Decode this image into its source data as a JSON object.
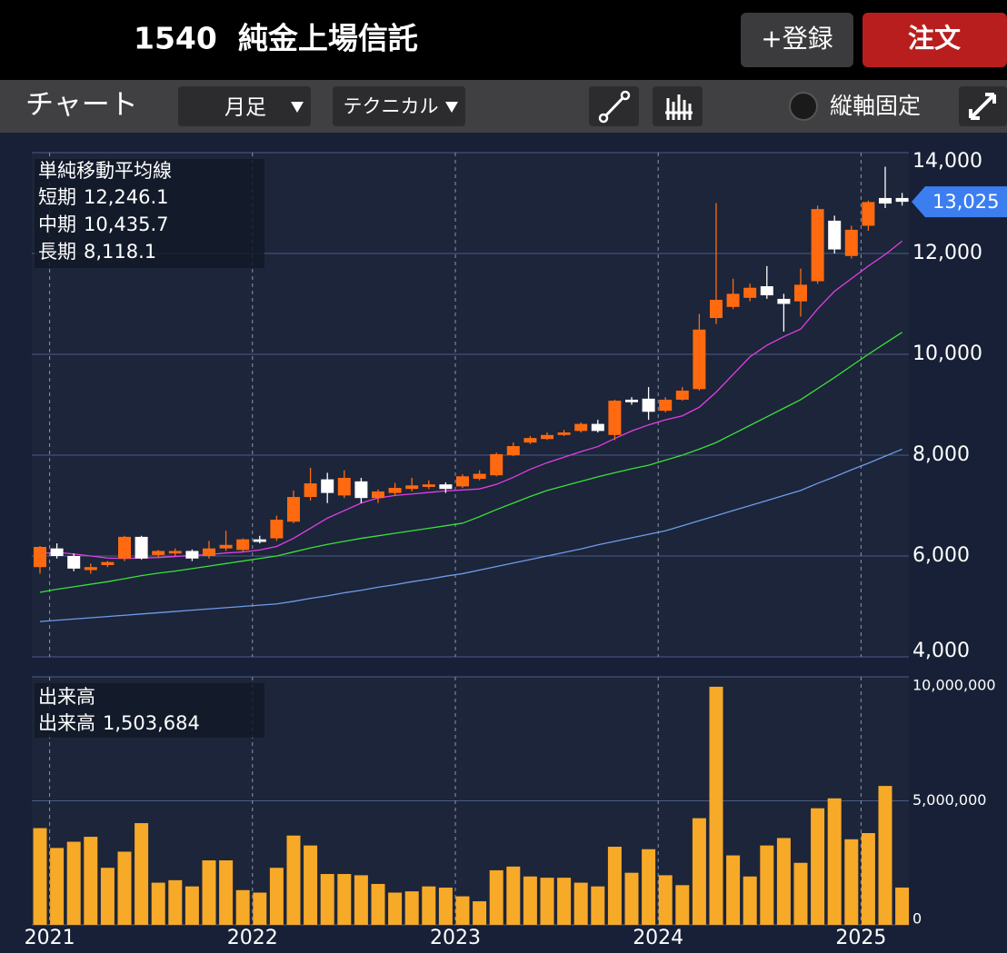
{
  "header": {
    "title": "1540  純金上場信託",
    "register": "+登録",
    "order": "注文"
  },
  "toolbar": {
    "label": "チャート",
    "period": "月足",
    "technical": "テクニカル",
    "fix_axis": "縦軸固定"
  },
  "chart_data": [
    {
      "type": "candlestick",
      "ma_title": "単純移動平均線",
      "up_color": "#ff6a10",
      "down_color": "#ffffff",
      "open": [
        5780,
        6150,
        6000,
        5720,
        5820,
        5950,
        6380,
        6020,
        6050,
        6100,
        6000,
        6150,
        6120,
        6330,
        6350,
        6680,
        7170,
        7520,
        7200,
        7480,
        7150,
        7250,
        7330,
        7370,
        7420,
        7380,
        7530,
        7600,
        8000,
        8250,
        8320,
        8400,
        8480,
        8620,
        8400,
        9100,
        9120,
        8880,
        9100,
        9310,
        10720,
        10940,
        11120,
        11350,
        11100,
        11050,
        11450,
        12650,
        11950,
        12550,
        13100,
        13100
      ],
      "high": [
        6200,
        6250,
        6050,
        5850,
        5900,
        6400,
        6400,
        6120,
        6150,
        6130,
        6300,
        6500,
        6350,
        6400,
        6800,
        7300,
        7750,
        7650,
        7700,
        7550,
        7320,
        7450,
        7550,
        7500,
        7460,
        7620,
        7700,
        8050,
        8250,
        8380,
        8450,
        8500,
        8650,
        8700,
        9100,
        9150,
        9350,
        9150,
        9350,
        10800,
        13000,
        11500,
        11400,
        11750,
        11200,
        11700,
        12950,
        12750,
        12550,
        13050,
        13720,
        13200
      ],
      "low": [
        5650,
        5950,
        5700,
        5650,
        5780,
        5900,
        5930,
        5980,
        6000,
        5900,
        5950,
        6100,
        6080,
        6250,
        6300,
        6650,
        7100,
        7050,
        7150,
        7050,
        7050,
        7200,
        7280,
        7330,
        7250,
        7350,
        7500,
        7580,
        7980,
        8220,
        8300,
        8380,
        8450,
        8450,
        8300,
        9000,
        8700,
        8850,
        9080,
        9280,
        10600,
        10900,
        11050,
        11100,
        10450,
        10750,
        11400,
        12000,
        11900,
        12450,
        12900,
        12950
      ],
      "close": [
        6180,
        6000,
        5750,
        5780,
        5880,
        6380,
        5950,
        6100,
        6100,
        5950,
        6150,
        6220,
        6330,
        6280,
        6720,
        7170,
        7440,
        7250,
        7550,
        7150,
        7280,
        7350,
        7400,
        7420,
        7330,
        7580,
        7630,
        8020,
        8180,
        8340,
        8400,
        8450,
        8620,
        8480,
        9080,
        9050,
        8860,
        9100,
        9280,
        10490,
        11080,
        11200,
        11320,
        11170,
        11000,
        11380,
        12880,
        12080,
        12470,
        13020,
        12990,
        13025
      ],
      "last_label": "13,025",
      "tag_color": "#3c7ef0",
      "series": [
        {
          "name": "短期",
          "color": "#e23ee6",
          "current_label": "12,246.1",
          "values": [
            6050,
            6070,
            6040,
            6000,
            5960,
            5950,
            5960,
            5970,
            5990,
            6010,
            6030,
            6060,
            6080,
            6120,
            6190,
            6350,
            6550,
            6750,
            6900,
            7050,
            7150,
            7200,
            7230,
            7260,
            7290,
            7310,
            7330,
            7420,
            7560,
            7720,
            7850,
            7960,
            8070,
            8170,
            8330,
            8480,
            8600,
            8700,
            8780,
            8950,
            9250,
            9600,
            9950,
            10180,
            10350,
            10500,
            10900,
            11250,
            11500,
            11750,
            11980,
            12246.1
          ]
        },
        {
          "name": "中期",
          "color": "#3ae03a",
          "current_label": "10,435.7",
          "values": [
            5280,
            5340,
            5390,
            5440,
            5490,
            5550,
            5610,
            5660,
            5700,
            5750,
            5800,
            5850,
            5900,
            5950,
            6000,
            6080,
            6160,
            6230,
            6290,
            6350,
            6400,
            6450,
            6500,
            6550,
            6600,
            6650,
            6780,
            6920,
            7050,
            7180,
            7300,
            7390,
            7480,
            7570,
            7650,
            7730,
            7800,
            7900,
            8000,
            8120,
            8250,
            8420,
            8590,
            8760,
            8930,
            9100,
            9320,
            9540,
            9770,
            10000,
            10220,
            10435.7
          ]
        },
        {
          "name": "長期",
          "color": "#6f9bea",
          "current_label": "8,118.1",
          "values": [
            4700,
            4725,
            4750,
            4775,
            4800,
            4825,
            4850,
            4875,
            4900,
            4925,
            4950,
            4975,
            5000,
            5025,
            5050,
            5100,
            5160,
            5210,
            5270,
            5320,
            5380,
            5430,
            5490,
            5540,
            5600,
            5650,
            5720,
            5790,
            5860,
            5930,
            6000,
            6070,
            6140,
            6220,
            6290,
            6360,
            6430,
            6500,
            6600,
            6700,
            6800,
            6900,
            7000,
            7100,
            7200,
            7300,
            7440,
            7570,
            7710,
            7840,
            7980,
            8118.1
          ]
        }
      ],
      "ylim": [
        4000,
        14000
      ],
      "yticks": [
        {
          "value": 4000,
          "label": "4,000"
        },
        {
          "value": 6000,
          "label": "6,000"
        },
        {
          "value": 8000,
          "label": "8,000"
        },
        {
          "value": 10000,
          "label": "10,000"
        },
        {
          "value": 12000,
          "label": "12,000"
        },
        {
          "value": 14000,
          "label": "14,000"
        }
      ],
      "grid": true
    },
    {
      "type": "bar",
      "title": "出来高",
      "color": "#f7a928",
      "categories": [
        null,
        "2021",
        null,
        null,
        null,
        null,
        null,
        null,
        null,
        null,
        null,
        null,
        null,
        "2022",
        null,
        null,
        null,
        null,
        null,
        null,
        null,
        null,
        null,
        null,
        null,
        "2023",
        null,
        null,
        null,
        null,
        null,
        null,
        null,
        null,
        null,
        null,
        null,
        "2024",
        null,
        null,
        null,
        null,
        null,
        null,
        null,
        null,
        null,
        null,
        null,
        "2025",
        null,
        null
      ],
      "series": [
        {
          "name": "出来高",
          "current_label": "1,503,684",
          "values": [
            3900000,
            3100000,
            3350000,
            3550000,
            2300000,
            2950000,
            4100000,
            1700000,
            1800000,
            1550000,
            2600000,
            2600000,
            1400000,
            1300000,
            2300000,
            3600000,
            3200000,
            2050000,
            2050000,
            2000000,
            1650000,
            1300000,
            1350000,
            1550000,
            1500000,
            1150000,
            950000,
            2200000,
            2350000,
            1950000,
            1900000,
            1900000,
            1700000,
            1550000,
            3150000,
            2100000,
            3050000,
            2000000,
            1600000,
            4300000,
            9600000,
            2800000,
            1950000,
            3200000,
            3500000,
            2500000,
            4700000,
            5100000,
            3450000,
            3700000,
            5600000,
            1503684
          ]
        }
      ],
      "ylim": [
        0,
        10000000
      ],
      "yticks": [
        0,
        {
          "value": 5000000,
          "label": "5,000,000"
        },
        {
          "value": 10000000,
          "label": "10,000,000"
        }
      ],
      "grid": true
    }
  ]
}
